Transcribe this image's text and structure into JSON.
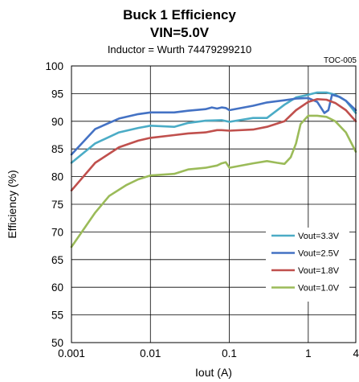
{
  "chart_data": {
    "type": "line",
    "title": "Buck 1 Efficiency",
    "subtitle": "VIN=5.0V",
    "subtitle2": "Inductor = Wurth 74479299210",
    "code": "TOC-005",
    "xlabel": "Iout (A)",
    "ylabel": "Efficiency (%)",
    "xscale": "log",
    "xlim": [
      0.001,
      4
    ],
    "ylim": [
      50,
      100
    ],
    "xticks": [
      0.001,
      0.01,
      0.1,
      1,
      4
    ],
    "xtick_labels": [
      "0.001",
      "0.01",
      "0.1",
      "1",
      "4"
    ],
    "yticks": [
      50,
      55,
      60,
      65,
      70,
      75,
      80,
      85,
      90,
      95,
      100
    ],
    "grid": true,
    "legend_position": "bottom-right",
    "series": [
      {
        "name": "Vout=3.3V",
        "color": "#4bacc6",
        "x": [
          0.001,
          0.002,
          0.004,
          0.007,
          0.01,
          0.02,
          0.03,
          0.05,
          0.08,
          0.1,
          0.2,
          0.3,
          0.5,
          0.7,
          1.0,
          1.3,
          1.7,
          2.2,
          3.0,
          4.0
        ],
        "y": [
          82.5,
          86.0,
          88.0,
          88.8,
          89.2,
          89.0,
          89.7,
          90.1,
          90.2,
          89.9,
          90.6,
          90.6,
          93.0,
          94.3,
          94.8,
          95.2,
          95.2,
          94.8,
          93.7,
          91.5
        ]
      },
      {
        "name": "Vout=2.5V",
        "color": "#4472c4",
        "x": [
          0.001,
          0.002,
          0.004,
          0.007,
          0.01,
          0.02,
          0.03,
          0.05,
          0.06,
          0.07,
          0.08,
          0.09,
          0.1,
          0.2,
          0.3,
          0.5,
          0.7,
          1.0,
          1.3,
          1.6,
          1.8,
          2.0,
          2.5,
          3.0,
          4.0
        ],
        "y": [
          84.0,
          88.6,
          90.5,
          91.3,
          91.6,
          91.6,
          91.9,
          92.2,
          92.5,
          92.3,
          92.5,
          92.4,
          92.0,
          92.8,
          93.4,
          93.8,
          94.1,
          94.2,
          93.5,
          91.5,
          92.0,
          94.8,
          94.4,
          93.7,
          92.0
        ]
      },
      {
        "name": "Vout=1.8V",
        "color": "#c0504d",
        "x": [
          0.001,
          0.002,
          0.004,
          0.007,
          0.01,
          0.02,
          0.03,
          0.05,
          0.07,
          0.08,
          0.1,
          0.2,
          0.3,
          0.5,
          0.7,
          1.0,
          1.3,
          1.7,
          2.2,
          3.0,
          4.0
        ],
        "y": [
          77.5,
          82.5,
          85.3,
          86.5,
          87.0,
          87.5,
          87.8,
          88.0,
          88.4,
          88.4,
          88.3,
          88.5,
          89.0,
          90.0,
          92.0,
          93.5,
          94.0,
          93.9,
          93.3,
          92.0,
          90.0
        ]
      },
      {
        "name": "Vout=1.0V",
        "color": "#9bbb59",
        "x": [
          0.001,
          0.002,
          0.003,
          0.005,
          0.007,
          0.01,
          0.02,
          0.03,
          0.05,
          0.07,
          0.08,
          0.09,
          0.1,
          0.2,
          0.3,
          0.4,
          0.5,
          0.6,
          0.7,
          0.8,
          1.0,
          1.3,
          1.7,
          2.2,
          3.0,
          4.0
        ],
        "y": [
          67.3,
          73.5,
          76.5,
          78.5,
          79.5,
          80.2,
          80.5,
          81.3,
          81.6,
          82.0,
          82.4,
          82.6,
          81.6,
          82.4,
          82.8,
          82.5,
          82.3,
          83.5,
          86.0,
          89.5,
          91.0,
          91.0,
          90.8,
          90.0,
          88.0,
          84.5
        ]
      }
    ]
  }
}
